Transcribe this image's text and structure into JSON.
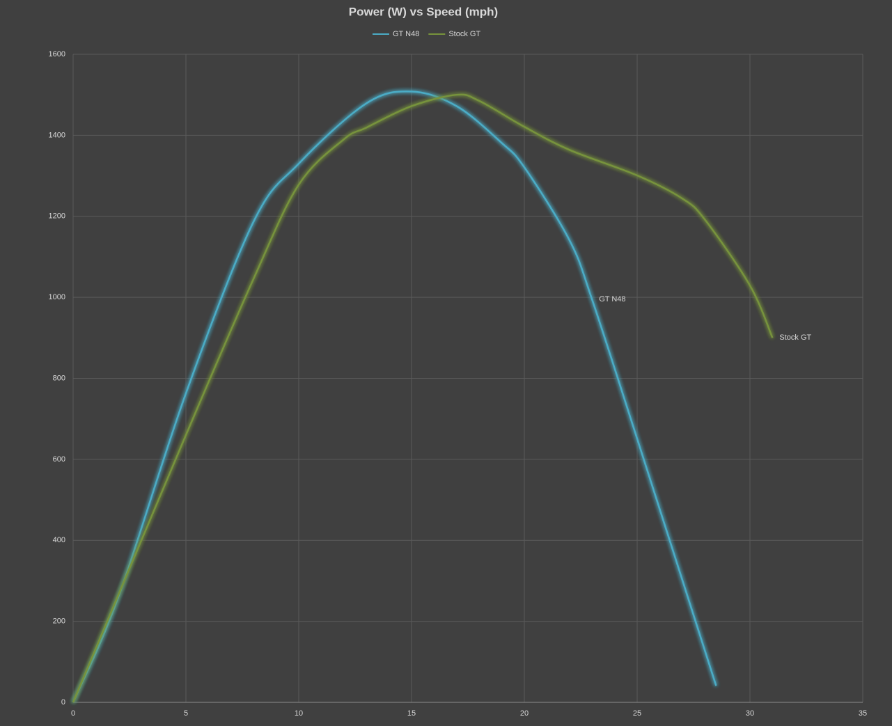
{
  "chart_data": {
    "type": "line",
    "title": "Power (W) vs Speed (mph)",
    "xlim": [
      0,
      35
    ],
    "xticks": [
      0,
      5,
      10,
      15,
      20,
      25,
      30,
      35
    ],
    "ylim": [
      0,
      1600
    ],
    "yticks": [
      0,
      200,
      400,
      600,
      800,
      1000,
      1200,
      1400,
      1600
    ],
    "grid": true,
    "legend": "top",
    "series": [
      {
        "name": "GT N48",
        "color": "#4bacc6",
        "x": [
          0,
          2,
          5,
          8,
          10,
          13,
          15,
          17,
          19,
          20,
          22,
          23,
          25,
          28.5
        ],
        "values": [
          0,
          259,
          763,
          1187,
          1330,
          1479,
          1508,
          1472,
          1381,
          1321,
          1141,
          995,
          651,
          41
        ]
      },
      {
        "name": "Stock GT",
        "color": "#77933c",
        "x": [
          0,
          5,
          8,
          10,
          12,
          13,
          15,
          17,
          18,
          20,
          22,
          25,
          27,
          28,
          30,
          31
        ],
        "values": [
          0,
          660,
          1046,
          1278,
          1390,
          1419,
          1472,
          1500,
          1485,
          1421,
          1364,
          1301,
          1244,
          1192,
          1029,
          900
        ]
      }
    ]
  }
}
